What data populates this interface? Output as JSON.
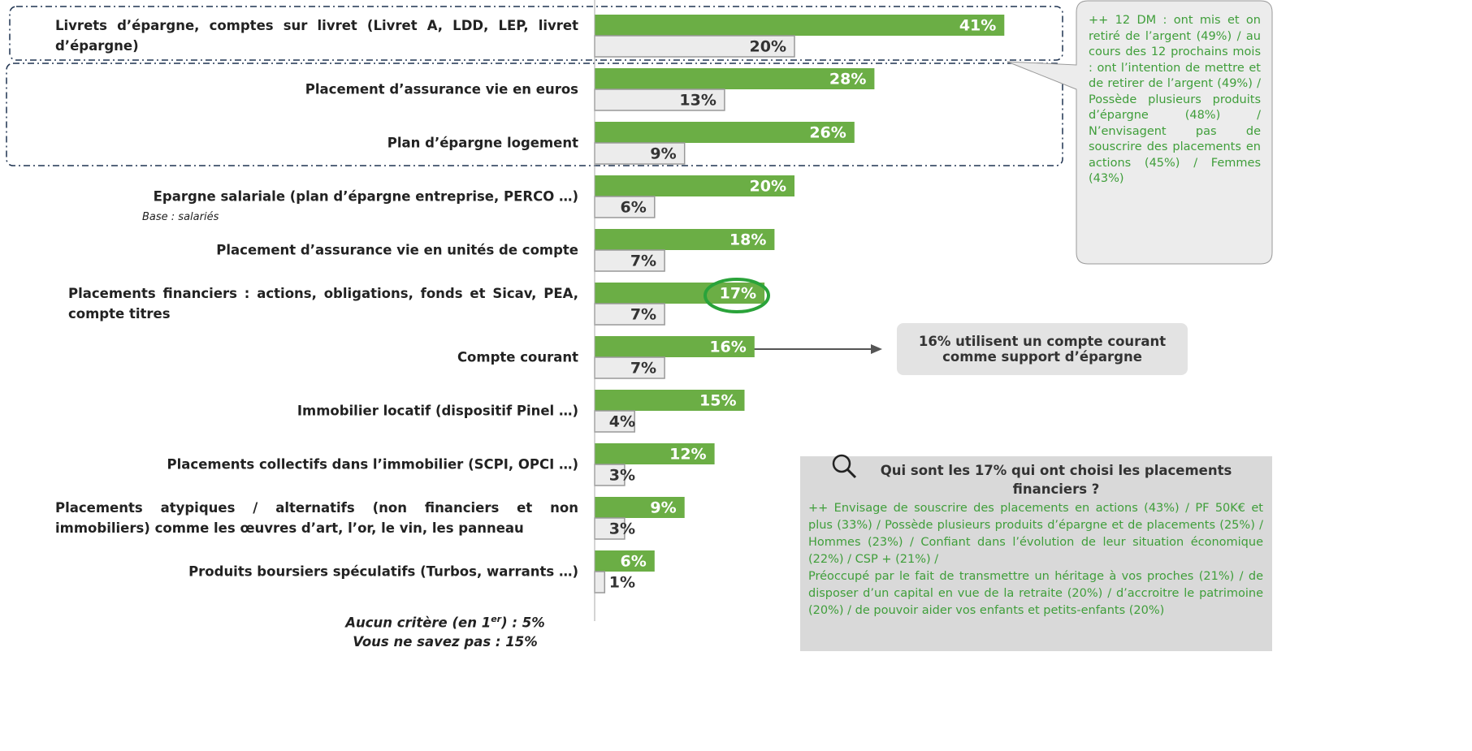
{
  "chart_data": {
    "type": "hbar",
    "categories": [
      "Livrets d’épargne, comptes sur livret (Livret A, LDD, LEP, livret d’épargne)",
      "Placement d’assurance vie en euros",
      "Plan d’épargne logement",
      "Epargne salariale (plan d’épargne entreprise, PERCO …)",
      "Placement d’assurance vie en unités de compte",
      "Placements financiers : actions, obligations, fonds et Sicav, PEA, compte titres",
      "Compte courant",
      "Immobilier locatif (dispositif Pinel …)",
      "Placements collectifs dans l’immobilier (SCPI, OPCI …)",
      "Placements atypiques / alternatifs (non financiers et non immobiliers) comme les œuvres d’art, l’or, le vin, les panneau",
      "Produits boursiers spéculatifs (Turbos, warrants …)"
    ],
    "series": [
      {
        "color": "#6bae45",
        "values": [
          41,
          28,
          26,
          20,
          18,
          17,
          16,
          15,
          12,
          9,
          6
        ],
        "value_labels": [
          "41%",
          "28%",
          "26%",
          "20%",
          "18%",
          "17%",
          "16%",
          "15%",
          "12%",
          "9%",
          "6%"
        ]
      },
      {
        "color": "#ececec",
        "values": [
          20,
          13,
          9,
          6,
          7,
          7,
          7,
          4,
          3,
          3,
          1
        ],
        "value_labels": [
          "20%",
          "13%",
          "9%",
          "6%",
          "7%",
          "7%",
          "7%",
          "4%",
          "3%",
          "3%",
          "1%"
        ]
      }
    ],
    "base_note": "Base : salariés",
    "footnotes": [
      {
        "before": "Aucun critère (en 1",
        "sup": "er",
        "after": ") : 5%"
      },
      {
        "before": "Vous ne savez pas : 15%"
      }
    ],
    "bubble": "++ 12 DM : ont mis et on retiré de l’argent (49%) / au cours des 12 prochains mois : ont l’intention de mettre et de retirer de l’argent (49%) / Possède plusieurs produits d’épargne (48%) / N’envisagent pas de souscrire des placements en actions (45%) / Femmes (43%)",
    "arrow_note": "16% utilisent un compte courant comme support d’épargne",
    "profile": {
      "title": "Qui sont les 17% qui ont choisi les placements financiers ?",
      "paragraphs": [
        "++ Envisage de souscrire des placements en actions (43%) / PF 50K€ et plus (33%) / Possède plusieurs produits d’épargne et de placements (25%) / Hommes (23%) / Confiant dans l’évolution de leur situation économique (22%) / CSP + (21%) /",
        "Préoccupé par le fait de transmettre un héritage à vos proches (21%) / de disposer d’un capital en vue de la retraite (20%) / d’accroitre le patrimoine (20%) / de pouvoir aider vos enfants et petits-enfants (20%)"
      ]
    }
  }
}
